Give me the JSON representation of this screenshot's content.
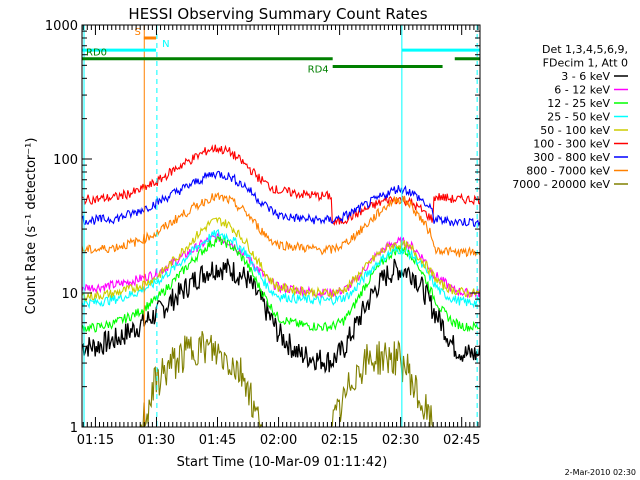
{
  "chart_data": {
    "type": "line",
    "title": "HESSI Observing Summary Count Rates",
    "xlabel": "Start Time (10-Mar-09 01:11:42)",
    "ylabel": "Count Rate (s⁻¹ detector⁻¹)",
    "yscale": "log",
    "ylim": [
      1,
      1000
    ],
    "xlim_min": [
      71.7,
      169.5
    ],
    "x_tick_labels": [
      "01:15",
      "01:30",
      "01:45",
      "02:00",
      "02:15",
      "02:30",
      "02:45"
    ],
    "x_ticks_min": [
      75,
      90,
      105,
      120,
      135,
      150,
      165
    ],
    "y_tick_labels": [
      "1",
      "10",
      "100",
      "1000"
    ],
    "y_ticks": [
      1,
      10,
      100,
      1000
    ],
    "grid": false,
    "legend": {
      "position": "right",
      "header": [
        "Det 1,3,4,5,6,9,",
        "FDecim 1, Att 0"
      ],
      "entries": [
        {
          "label": "3 - 6 keV",
          "color": "#000000"
        },
        {
          "label": "6 - 12 keV",
          "color": "#ff00ff"
        },
        {
          "label": "12 - 25 keV",
          "color": "#00ff00"
        },
        {
          "label": "25 - 50 keV",
          "color": "#00ffff"
        },
        {
          "label": "50 - 100 keV",
          "color": "#cccc00"
        },
        {
          "label": "100 - 300 keV",
          "color": "#ff0000"
        },
        {
          "label": "300 - 800 keV",
          "color": "#0000ff"
        },
        {
          "label": "800 - 7000 keV",
          "color": "#ff8000"
        },
        {
          "label": "7000 - 20000 keV",
          "color": "#808000"
        }
      ]
    },
    "series": [
      {
        "name": "3 - 6 keV",
        "color": "#000000",
        "x": [
          71.7,
          75,
          80,
          85,
          90,
          95,
          100,
          103,
          105,
          108,
          112,
          115,
          118,
          120,
          125,
          130,
          133,
          136,
          138,
          141,
          144,
          147,
          149,
          150.5,
          153,
          156,
          158,
          160,
          163,
          166,
          168.5
        ],
        "y": [
          4,
          4,
          4.5,
          5.5,
          7,
          9.5,
          13,
          15,
          15.5,
          15,
          13,
          9.5,
          6.5,
          5,
          3.5,
          3.2,
          3.1,
          3.8,
          5,
          7.5,
          11,
          14,
          15,
          15,
          14,
          10,
          7.5,
          6,
          4,
          3.5,
          3.5
        ]
      },
      {
        "name": "6 - 12 keV",
        "color": "#ff00ff",
        "x": [
          71.7,
          75,
          80,
          85,
          90,
          95,
          100,
          103,
          105,
          108,
          112,
          115,
          118,
          120,
          125,
          130,
          133,
          136,
          138,
          141,
          144,
          147,
          149,
          150.5,
          153,
          156,
          158,
          160,
          163,
          166,
          168.5
        ],
        "y": [
          11,
          11,
          11.5,
          12.5,
          14,
          17.5,
          22,
          25,
          26,
          24,
          19,
          15,
          12,
          11,
          10.5,
          10,
          10,
          10.5,
          11.5,
          15,
          19,
          22.5,
          24,
          24,
          22,
          17.5,
          14,
          12.5,
          10.5,
          10,
          10
        ]
      },
      {
        "name": "12 - 25 keV",
        "color": "#00ff00",
        "x": [
          71.7,
          75,
          80,
          85,
          90,
          95,
          100,
          103,
          105,
          108,
          112,
          115,
          118,
          120,
          125,
          130,
          133,
          136,
          138,
          141,
          144,
          147,
          149,
          150.5,
          153,
          156,
          158,
          160,
          163,
          166,
          168.5
        ],
        "y": [
          5.5,
          5.5,
          6,
          7,
          9,
          13,
          19,
          23,
          25,
          23,
          17,
          11.5,
          8,
          6.5,
          5.8,
          5.6,
          5.6,
          6.2,
          7.5,
          11,
          15,
          19,
          21,
          21,
          19,
          13,
          9.5,
          7.5,
          6,
          5.6,
          5.6
        ]
      },
      {
        "name": "25 - 50 keV",
        "color": "#00ffff",
        "x": [
          71.7,
          75,
          80,
          85,
          90,
          95,
          100,
          103,
          105,
          108,
          112,
          115,
          118,
          120,
          125,
          130,
          133,
          136,
          138,
          141,
          144,
          147,
          149,
          150.5,
          153,
          156,
          158,
          160,
          163,
          166,
          168.5
        ],
        "y": [
          8.5,
          8.5,
          9,
          10,
          12,
          16,
          22,
          26,
          28,
          26,
          20,
          14,
          10.5,
          9.5,
          9,
          8.8,
          8.8,
          9.2,
          10,
          13,
          16.5,
          19.5,
          21,
          21,
          19,
          15,
          12,
          10,
          9,
          8.5,
          8.5
        ]
      },
      {
        "name": "50 - 100 keV",
        "color": "#cccc00",
        "x": [
          71.7,
          75,
          80,
          85,
          90,
          95,
          100,
          103,
          105,
          108,
          112,
          115,
          118,
          120,
          125,
          130,
          133,
          136,
          138,
          141,
          144,
          147,
          149,
          150.5,
          153,
          156,
          158,
          160,
          163,
          166,
          168.5
        ],
        "y": [
          9.5,
          9.5,
          10,
          11,
          13,
          18.5,
          27,
          33,
          35,
          32,
          24,
          17,
          12.5,
          11,
          10.5,
          10,
          10,
          10.5,
          12,
          15,
          19,
          22,
          23,
          23,
          21,
          16.5,
          13.5,
          11.5,
          10.5,
          10,
          10
        ]
      },
      {
        "name": "100 - 300 keV",
        "color": "#ff0000",
        "x": [
          71.7,
          75,
          80,
          85,
          90,
          95,
          100,
          103,
          105,
          108,
          112,
          115,
          118,
          120,
          125,
          130,
          133,
          133.1,
          136,
          140,
          144,
          147,
          149,
          150.5,
          152,
          155,
          158,
          158.1,
          160,
          163,
          166,
          168.5
        ],
        "y": [
          50,
          50,
          52,
          57,
          67,
          86,
          105,
          118,
          120,
          113,
          90,
          73,
          62,
          58,
          55,
          53,
          53,
          33,
          35,
          40,
          46,
          50,
          50,
          50,
          48,
          42,
          35,
          52,
          52,
          50,
          50,
          50
        ]
      },
      {
        "name": "300 - 800 keV",
        "color": "#0000ff",
        "x": [
          71.7,
          75,
          80,
          85,
          90,
          95,
          100,
          103,
          105,
          108,
          112,
          115,
          118,
          120,
          125,
          130,
          133,
          133.1,
          136,
          140,
          144,
          147,
          149,
          150.5,
          152,
          155,
          158,
          158.1,
          160,
          163,
          166,
          168.5
        ],
        "y": [
          35,
          35,
          36,
          40,
          47,
          57,
          68,
          76,
          78,
          74,
          62,
          50,
          42,
          38,
          36,
          35,
          35,
          35,
          37,
          43,
          50,
          56,
          60,
          60,
          58,
          50,
          40,
          35,
          35,
          34,
          34,
          34
        ]
      },
      {
        "name": "800 - 7000 keV",
        "color": "#ff8000",
        "x": [
          71.7,
          75,
          80,
          85,
          90,
          95,
          100,
          103,
          105,
          108,
          112,
          115,
          118,
          120,
          125,
          130,
          133,
          133.1,
          136,
          140,
          144,
          147,
          149,
          150.5,
          152,
          155,
          158,
          158.1,
          160,
          163,
          166,
          168.5
        ],
        "y": [
          21,
          21,
          22,
          24,
          28,
          36,
          45,
          51,
          52,
          49,
          40,
          31,
          25,
          23,
          22,
          21,
          21,
          21,
          23,
          29,
          38,
          46,
          50,
          50,
          47,
          36,
          26,
          21,
          21,
          20,
          20,
          20
        ]
      },
      {
        "name": "7000 - 20000 keV",
        "color": "#808000",
        "x": [
          71.7,
          80,
          86,
          88,
          89,
          91,
          93,
          95,
          97,
          99,
          100,
          102,
          104,
          106,
          108,
          110,
          112,
          113,
          114,
          116,
          122,
          128,
          131,
          133,
          135,
          137,
          138,
          140,
          142,
          144,
          146,
          148,
          150,
          152,
          153,
          155,
          158,
          164,
          168.5
        ],
        "y": [
          1,
          1,
          1,
          1.4,
          1.9,
          2.4,
          2.8,
          3.1,
          3.5,
          3.9,
          4,
          3.9,
          3.7,
          3.4,
          3.1,
          2.7,
          2.3,
          1.8,
          1.3,
          1,
          1,
          1,
          1,
          1,
          1.3,
          1.8,
          2.3,
          2.8,
          3.1,
          3.3,
          3.3,
          3.3,
          3.1,
          2.6,
          2.1,
          1.5,
          1,
          1,
          1
        ]
      }
    ],
    "annotations": {
      "flags": [
        {
          "label": "S",
          "color": "#ff8000",
          "x_start": 86.9,
          "x_end": 89.9,
          "y": 800
        },
        {
          "label": "N",
          "color": "#00ffff",
          "x_start": 71.7,
          "x_end": 89.9,
          "y": 650
        },
        {
          "label": "RD0",
          "color": "#008000",
          "x_start": 71.7,
          "x_end": 133.3,
          "y": 560
        },
        {
          "label": "RD4",
          "color": "#008000",
          "x_start": 133.3,
          "x_end": 160.3,
          "y": 490
        },
        {
          "label": "",
          "color": "#008000",
          "x_start": 163.3,
          "x_end": 169.5,
          "y": 560
        },
        {
          "label": "",
          "color": "#00ffff",
          "x_start": 150.3,
          "x_end": 169.5,
          "y": 650
        }
      ],
      "vlines": [
        {
          "x": 72.2,
          "color": "#00ffff",
          "style": "solid"
        },
        {
          "x": 87.0,
          "color": "#ff8000",
          "style": "solid"
        },
        {
          "x": 90.1,
          "color": "#00ffff",
          "style": "dashed"
        },
        {
          "x": 150.3,
          "color": "#00ffff",
          "style": "solid"
        },
        {
          "x": 168.8,
          "color": "#00ffff",
          "style": "dashed"
        }
      ]
    },
    "footer": "2-Mar-2010 02:30"
  }
}
